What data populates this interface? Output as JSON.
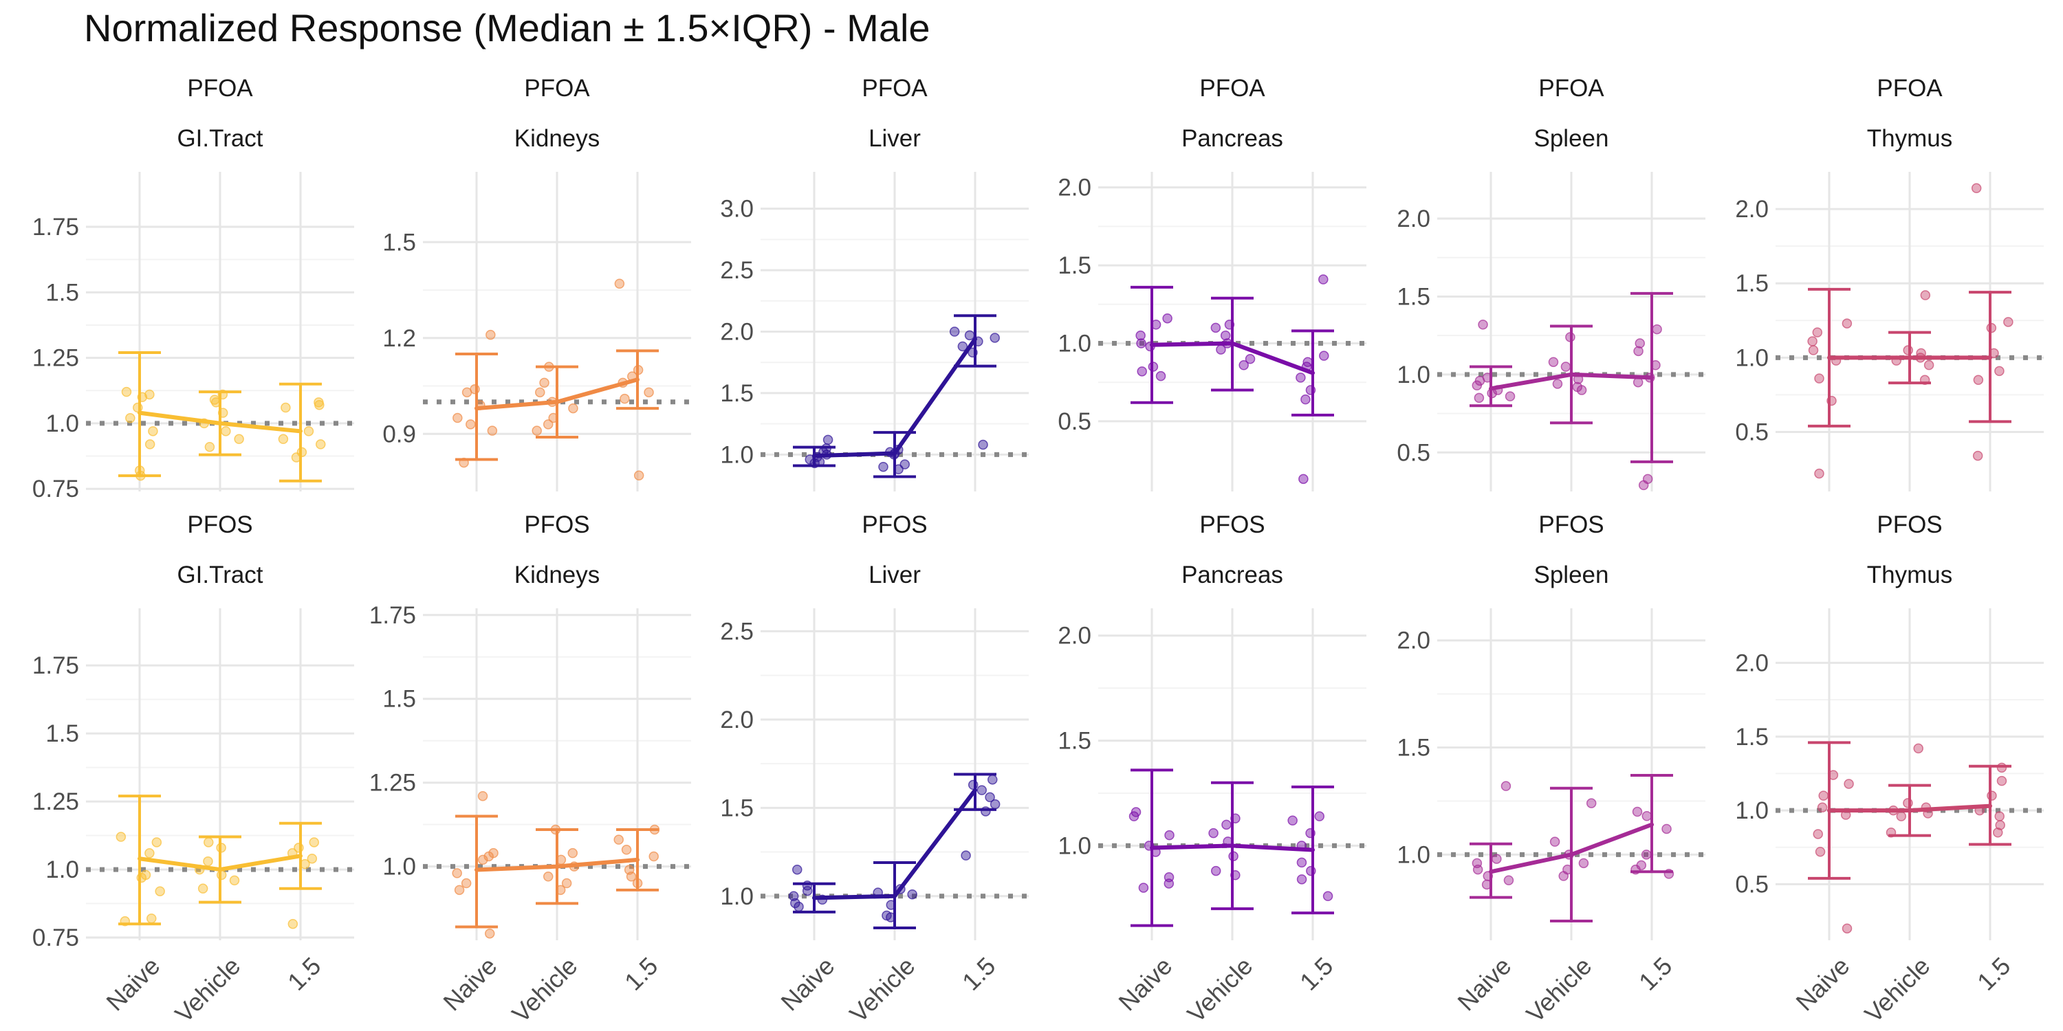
{
  "title": "Normalized Response (Median ± 1.5×IQR) - Male",
  "chart_data": {
    "type": "line",
    "title": "Normalized Response (Median ± 1.5×IQR) - Male",
    "categories": [
      "Naive",
      "Vehicle",
      "1.5"
    ],
    "reference_line": 1.0,
    "grid": true,
    "legend": "none",
    "panels": [
      {
        "row": 0,
        "col": 0,
        "compound": "PFOA",
        "organ": "GI.Tract",
        "color": "#F9BE32",
        "ylim": [
          0.74,
          1.96
        ],
        "yticks": [
          0.75,
          1.0,
          1.25,
          1.5,
          1.75
        ],
        "median": [
          1.04,
          1.0,
          0.97
        ],
        "upper": [
          1.27,
          1.12,
          1.15
        ],
        "lower": [
          0.8,
          0.88,
          0.78
        ],
        "points": [
          [
            1.12,
            1.11,
            1.1,
            1.06,
            1.02,
            0.97,
            0.92,
            0.82,
            0.8
          ],
          [
            1.11,
            1.09,
            1.08,
            1.04,
            1.0,
            0.97,
            0.94,
            0.91
          ],
          [
            1.08,
            1.07,
            1.06,
            0.97,
            0.94,
            0.92,
            0.89,
            0.87
          ]
        ]
      },
      {
        "row": 0,
        "col": 1,
        "compound": "PFOA",
        "organ": "Kidneys",
        "color": "#F08A45",
        "ylim": [
          0.72,
          1.72
        ],
        "yticks": [
          0.9,
          1.2,
          1.5
        ],
        "median": [
          0.98,
          1.0,
          1.07
        ],
        "upper": [
          1.15,
          1.11,
          1.16
        ],
        "lower": [
          0.82,
          0.89,
          0.98
        ],
        "points": [
          [
            1.21,
            1.04,
            1.03,
            0.99,
            0.95,
            0.93,
            0.91,
            0.81
          ],
          [
            1.11,
            1.06,
            1.03,
            1.0,
            0.98,
            0.95,
            0.93,
            0.91
          ],
          [
            1.37,
            1.1,
            1.08,
            1.06,
            1.03,
            1.01,
            0.77
          ]
        ]
      },
      {
        "row": 0,
        "col": 2,
        "compound": "PFOA",
        "organ": "Liver",
        "color": "#2E1396",
        "ylim": [
          0.7,
          3.3
        ],
        "yticks": [
          1.0,
          1.5,
          2.0,
          2.5,
          3.0
        ],
        "median": [
          0.99,
          1.01,
          1.94
        ],
        "upper": [
          1.06,
          1.18,
          2.13
        ],
        "lower": [
          0.91,
          0.82,
          1.72
        ],
        "points": [
          [
            1.12,
            1.05,
            1.02,
            1.0,
            0.98,
            0.96,
            0.94,
            0.93
          ],
          [
            1.04,
            1.02,
            1.01,
            1.0,
            0.92,
            0.9,
            0.88
          ],
          [
            2.0,
            1.97,
            1.95,
            1.92,
            1.88,
            1.83,
            1.08
          ]
        ]
      },
      {
        "row": 0,
        "col": 3,
        "compound": "PFOA",
        "organ": "Pancreas",
        "color": "#7A0DA8",
        "ylim": [
          0.05,
          2.1
        ],
        "yticks": [
          0.5,
          1.0,
          1.5,
          2.0
        ],
        "median": [
          0.99,
          1.0,
          0.81
        ],
        "upper": [
          1.36,
          1.29,
          1.08
        ],
        "lower": [
          0.62,
          0.7,
          0.54
        ],
        "points": [
          [
            1.16,
            1.12,
            1.05,
            1.0,
            0.98,
            0.85,
            0.82,
            0.79
          ],
          [
            1.12,
            1.1,
            1.05,
            1.0,
            0.96,
            0.9,
            0.86
          ],
          [
            1.41,
            0.92,
            0.88,
            0.85,
            0.78,
            0.7,
            0.64,
            0.13
          ]
        ]
      },
      {
        "row": 0,
        "col": 4,
        "compound": "PFOA",
        "organ": "Spleen",
        "color": "#A52B96",
        "ylim": [
          0.25,
          2.3
        ],
        "yticks": [
          0.5,
          1.0,
          1.5,
          2.0
        ],
        "median": [
          0.91,
          1.0,
          0.98
        ],
        "upper": [
          1.05,
          1.31,
          1.52
        ],
        "lower": [
          0.8,
          0.69,
          0.44
        ],
        "points": [
          [
            1.32,
            0.98,
            0.96,
            0.93,
            0.9,
            0.88,
            0.86,
            0.85
          ],
          [
            1.24,
            1.08,
            1.05,
            0.97,
            0.94,
            0.92,
            0.9
          ],
          [
            1.29,
            1.2,
            1.15,
            1.06,
            0.98,
            0.95,
            0.33,
            0.29
          ]
        ]
      },
      {
        "row": 0,
        "col": 5,
        "compound": "PFOA",
        "organ": "Thymus",
        "color": "#C8466E",
        "ylim": [
          0.1,
          2.25
        ],
        "yticks": [
          0.5,
          1.0,
          1.5,
          2.0
        ],
        "median": [
          1.0,
          1.0,
          1.0
        ],
        "upper": [
          1.46,
          1.17,
          1.44
        ],
        "lower": [
          0.54,
          0.83,
          0.57
        ],
        "points": [
          [
            1.23,
            1.17,
            1.11,
            1.05,
            0.98,
            0.86,
            0.71,
            0.22
          ],
          [
            1.42,
            1.05,
            1.03,
            1.0,
            0.98,
            0.95,
            0.85
          ],
          [
            2.14,
            1.24,
            1.2,
            1.03,
            0.91,
            0.85,
            0.34
          ]
        ]
      },
      {
        "row": 1,
        "col": 0,
        "compound": "PFOS",
        "organ": "GI.Tract",
        "color": "#F9BE32",
        "ylim": [
          0.74,
          1.96
        ],
        "yticks": [
          0.75,
          1.0,
          1.25,
          1.5,
          1.75
        ],
        "median": [
          1.04,
          1.0,
          1.05
        ],
        "upper": [
          1.27,
          1.12,
          1.17
        ],
        "lower": [
          0.8,
          0.88,
          0.93
        ],
        "points": [
          [
            1.12,
            1.1,
            1.06,
            0.98,
            0.97,
            0.92,
            0.82,
            0.81
          ],
          [
            1.1,
            1.08,
            1.03,
            1.0,
            0.98,
            0.96,
            0.93
          ],
          [
            1.1,
            1.08,
            1.06,
            1.04,
            1.02,
            0.8
          ]
        ]
      },
      {
        "row": 1,
        "col": 1,
        "compound": "PFOS",
        "organ": "Kidneys",
        "color": "#F08A45",
        "ylim": [
          0.78,
          1.77
        ],
        "yticks": [
          1.0,
          1.25,
          1.5,
          1.75
        ],
        "median": [
          0.99,
          1.0,
          1.02
        ],
        "upper": [
          1.15,
          1.11,
          1.11
        ],
        "lower": [
          0.82,
          0.89,
          0.93
        ],
        "points": [
          [
            1.21,
            1.04,
            1.03,
            1.02,
            0.98,
            0.95,
            0.93,
            0.8
          ],
          [
            1.11,
            1.04,
            1.02,
            1.0,
            0.97,
            0.95,
            0.93
          ],
          [
            1.11,
            1.08,
            1.05,
            1.03,
            0.99,
            0.97,
            0.95
          ]
        ]
      },
      {
        "row": 1,
        "col": 2,
        "compound": "PFOS",
        "organ": "Liver",
        "color": "#2E1396",
        "ylim": [
          0.75,
          2.63
        ],
        "yticks": [
          1.0,
          1.5,
          2.0,
          2.5
        ],
        "median": [
          0.99,
          1.0,
          1.6
        ],
        "upper": [
          1.07,
          1.19,
          1.69
        ],
        "lower": [
          0.91,
          0.82,
          1.49
        ],
        "points": [
          [
            1.15,
            1.06,
            1.03,
            1.0,
            0.98,
            0.96,
            0.94
          ],
          [
            1.04,
            1.02,
            1.01,
            0.95,
            0.89,
            0.88
          ],
          [
            1.66,
            1.63,
            1.6,
            1.56,
            1.52,
            1.48,
            1.23
          ]
        ]
      },
      {
        "row": 1,
        "col": 3,
        "compound": "PFOS",
        "organ": "Pancreas",
        "color": "#7A0DA8",
        "ylim": [
          0.55,
          2.13
        ],
        "yticks": [
          1.0,
          1.5,
          2.0
        ],
        "median": [
          0.99,
          1.0,
          0.98
        ],
        "upper": [
          1.36,
          1.3,
          1.28
        ],
        "lower": [
          0.62,
          0.7,
          0.68
        ],
        "points": [
          [
            1.16,
            1.14,
            1.05,
            1.0,
            0.97,
            0.85,
            0.82,
            0.8
          ],
          [
            1.13,
            1.1,
            1.06,
            1.02,
            0.95,
            0.88,
            0.86
          ],
          [
            1.14,
            1.12,
            1.06,
            1.0,
            0.92,
            0.88,
            0.84,
            0.76
          ]
        ]
      },
      {
        "row": 1,
        "col": 4,
        "compound": "PFOS",
        "organ": "Spleen",
        "color": "#A52B96",
        "ylim": [
          0.6,
          2.15
        ],
        "yticks": [
          1.0,
          1.5,
          2.0
        ],
        "median": [
          0.92,
          1.0,
          1.14
        ],
        "upper": [
          1.05,
          1.31,
          1.37
        ],
        "lower": [
          0.8,
          0.69,
          0.92
        ],
        "points": [
          [
            1.32,
            0.98,
            0.96,
            0.93,
            0.9,
            0.88,
            0.86
          ],
          [
            1.24,
            1.06,
            1.0,
            0.96,
            0.93,
            0.9
          ],
          [
            1.2,
            1.18,
            1.12,
            1.0,
            0.95,
            0.93,
            0.91
          ]
        ]
      },
      {
        "row": 1,
        "col": 5,
        "compound": "PFOS",
        "organ": "Thymus",
        "color": "#C8466E",
        "ylim": [
          0.12,
          2.37
        ],
        "yticks": [
          0.5,
          1.0,
          1.5,
          2.0
        ],
        "median": [
          1.0,
          1.0,
          1.03
        ],
        "upper": [
          1.46,
          1.17,
          1.3
        ],
        "lower": [
          0.54,
          0.83,
          0.77
        ],
        "points": [
          [
            1.24,
            1.18,
            1.1,
            1.02,
            0.97,
            0.84,
            0.72,
            0.2
          ],
          [
            1.42,
            1.05,
            1.02,
            1.0,
            0.98,
            0.96,
            0.85
          ],
          [
            1.29,
            1.2,
            1.1,
            1.0,
            0.96,
            0.9,
            0.85
          ]
        ]
      }
    ]
  }
}
